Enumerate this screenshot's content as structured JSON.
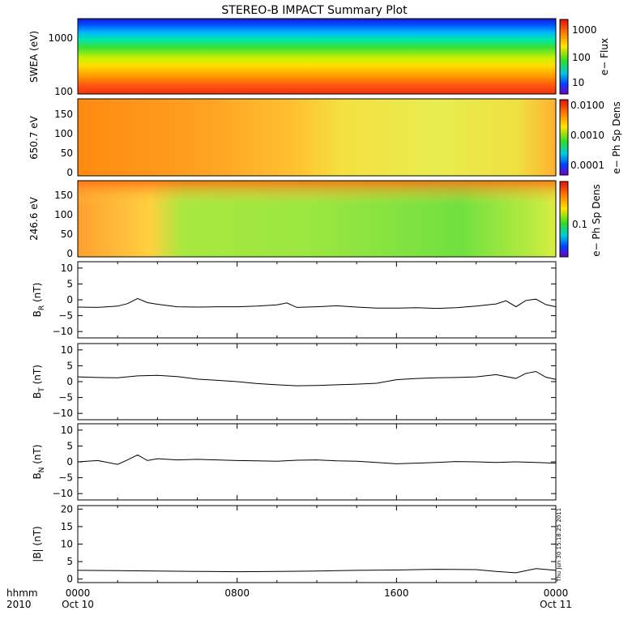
{
  "figure": {
    "title": "STEREO-B IMPACT Summary Plot",
    "timestamp": "Thu Jun 30 15:18:25 2011",
    "time_axis": {
      "header_top": "hhmm",
      "header_bottom": "2010",
      "ticks": [
        {
          "top": "0000",
          "bottom": "Oct 10"
        },
        {
          "top": "0800",
          "bottom": ""
        },
        {
          "top": "1600",
          "bottom": ""
        },
        {
          "top": "0000",
          "bottom": "Oct 11"
        }
      ]
    }
  },
  "chart_data": [
    {
      "type": "heatmap",
      "ylabel": "SWEA (eV)",
      "yscale": "log",
      "ylim": [
        100,
        2000
      ],
      "ytick_labels": [
        "1000",
        "100"
      ],
      "colorbar": {
        "label": "e− Flux",
        "scale": "log",
        "tick_labels": [
          "1000",
          "100",
          "10"
        ]
      }
    },
    {
      "type": "heatmap",
      "ylabel": "650.7 eV",
      "ylim": [
        0,
        180
      ],
      "ytick_labels": [
        "150",
        "100",
        "50",
        "0"
      ],
      "colorbar": {
        "label": "e− Ph Sp Dens",
        "scale": "log",
        "tick_labels": [
          "0.0100",
          "0.0010",
          "0.0001"
        ]
      }
    },
    {
      "type": "heatmap",
      "ylabel": "246.6 eV",
      "ylim": [
        0,
        180
      ],
      "ytick_labels": [
        "150",
        "100",
        "50",
        "0"
      ],
      "colorbar": {
        "label": "e− Ph Sp Dens",
        "scale": "log",
        "tick_labels": [
          "0.1"
        ]
      }
    },
    {
      "type": "line",
      "ylabel_base": "B",
      "ylabel_sub": "R",
      "ylabel_unit": " (nT)",
      "ylim": [
        -12,
        12
      ],
      "ytick_labels": [
        "10",
        "5",
        "0",
        "−5",
        "−10"
      ],
      "x": [
        0,
        1,
        2,
        2.5,
        3,
        3.5,
        4,
        5,
        6,
        7,
        8,
        9,
        10,
        10.5,
        11,
        12,
        13,
        14,
        15,
        16,
        17,
        18,
        19,
        20,
        21,
        21.5,
        22,
        22.5,
        23,
        23.5,
        24
      ],
      "y": [
        -2.3,
        -2.4,
        -2.0,
        -1.2,
        0.4,
        -0.9,
        -1.4,
        -2.2,
        -2.3,
        -2.2,
        -2.2,
        -2.0,
        -1.6,
        -1.0,
        -2.4,
        -2.2,
        -1.9,
        -2.3,
        -2.6,
        -2.6,
        -2.5,
        -2.7,
        -2.5,
        -2.0,
        -1.3,
        -0.3,
        -2.2,
        -0.2,
        0.2,
        -1.5,
        -2.2
      ]
    },
    {
      "type": "line",
      "ylabel_base": "B",
      "ylabel_sub": "T",
      "ylabel_unit": " (nT)",
      "ylim": [
        -12,
        12
      ],
      "ytick_labels": [
        "10",
        "5",
        "0",
        "−5",
        "−10"
      ],
      "x": [
        0,
        1,
        2,
        3,
        4,
        5,
        6,
        7,
        8,
        9,
        10,
        11,
        12,
        13,
        14,
        15,
        16,
        17,
        18,
        19,
        20,
        21,
        22,
        22.5,
        23,
        23.5,
        24
      ],
      "y": [
        1.5,
        1.3,
        1.2,
        1.8,
        2.0,
        1.6,
        0.8,
        0.4,
        0.0,
        -0.6,
        -1.0,
        -1.3,
        -1.2,
        -1.0,
        -0.8,
        -0.5,
        0.6,
        1.0,
        1.2,
        1.3,
        1.5,
        2.2,
        1.0,
        2.6,
        3.2,
        1.4,
        0.7
      ]
    },
    {
      "type": "line",
      "ylabel_base": "B",
      "ylabel_sub": "N",
      "ylabel_unit": " (nT)",
      "ylim": [
        -12,
        12
      ],
      "ytick_labels": [
        "10",
        "5",
        "0",
        "−5",
        "−10"
      ],
      "x": [
        0,
        1,
        2,
        2.5,
        3,
        3.5,
        4,
        5,
        6,
        7,
        8,
        9,
        10,
        11,
        12,
        13,
        14,
        15,
        16,
        17,
        18,
        19,
        20,
        21,
        22,
        23,
        24
      ],
      "y": [
        0.0,
        0.4,
        -0.8,
        0.6,
        2.2,
        0.4,
        1.0,
        0.6,
        0.8,
        0.6,
        0.4,
        0.3,
        0.2,
        0.5,
        0.6,
        0.3,
        0.2,
        -0.2,
        -0.6,
        -0.4,
        -0.2,
        0.1,
        0.0,
        -0.2,
        0.0,
        -0.2,
        -0.4
      ]
    },
    {
      "type": "line",
      "ylabel": "|B| (nT)",
      "ylim": [
        -1,
        21
      ],
      "ytick_labels": [
        "20",
        "15",
        "10",
        "5",
        "0"
      ],
      "x": [
        0,
        2,
        4,
        6,
        8,
        10,
        12,
        14,
        16,
        18,
        20,
        21,
        22,
        23,
        24
      ],
      "y": [
        2.5,
        2.4,
        2.3,
        2.2,
        2.1,
        2.2,
        2.3,
        2.5,
        2.6,
        2.8,
        2.7,
        2.2,
        1.8,
        3.0,
        2.5
      ]
    }
  ]
}
